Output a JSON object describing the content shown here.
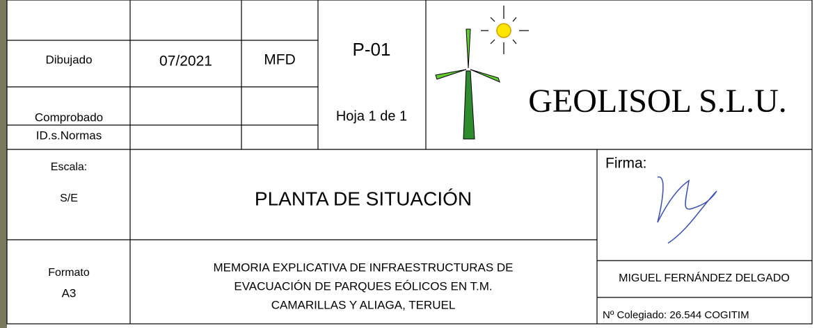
{
  "info_rows": [
    {
      "label": "Dibujado",
      "date": "07/2021",
      "initials": "MFD"
    },
    {
      "label": "Comprobado"
    },
    {
      "label": "ID.s.Normas"
    }
  ],
  "sheet": {
    "code": "P-01",
    "page": "Hoja 1 de 1"
  },
  "company": "GEOLISOL S.L.U.",
  "scale": {
    "label": "Escala:",
    "value": "S/E"
  },
  "title": "PLANTA DE SITUACIÓN",
  "signature": {
    "label": "Firma:"
  },
  "format": {
    "label": "Formato",
    "value": "A3"
  },
  "description": [
    "MEMORIA EXPLICATIVA  DE INFRAESTRUCTURAS DE",
    "EVACUACIÓN DE PARQUES EÓLICOS EN T.M.",
    "CAMARILLAS Y ALIAGA, TERUEL"
  ],
  "author": {
    "name": "MIGUEL FERNÁNDEZ DELGADO",
    "registration": "Nº Colegiado: 26.544 COGITIM"
  }
}
